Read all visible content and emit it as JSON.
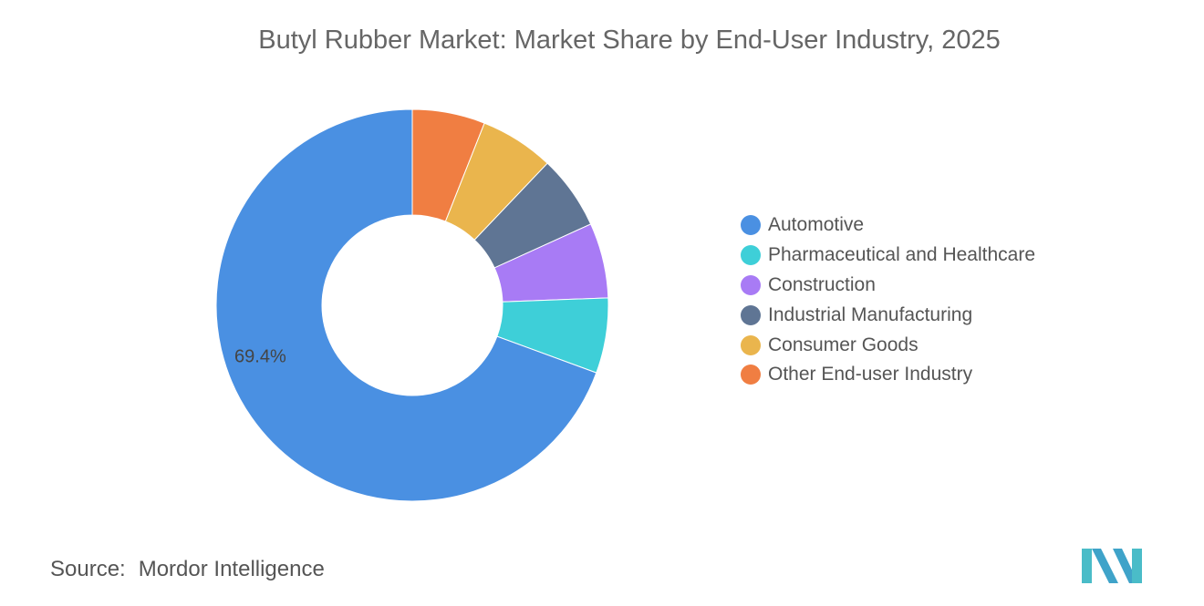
{
  "chart_data": {
    "type": "pie",
    "donut": true,
    "title": "Butyl Rubber Market: Market Share by End-User Industry, 2025",
    "series": [
      {
        "name": "Automotive",
        "value": 69.4,
        "color": "#4A90E2"
      },
      {
        "name": "Pharmaceutical and Healthcare",
        "value": 6.2,
        "color": "#3ECFD8"
      },
      {
        "name": "Construction",
        "value": 6.2,
        "color": "#A87BF5"
      },
      {
        "name": "Industrial Manufacturing",
        "value": 6.1,
        "color": "#5F7594"
      },
      {
        "name": "Consumer Goods",
        "value": 6.1,
        "color": "#EAB54D"
      },
      {
        "name": "Other End-user Industry",
        "value": 6.0,
        "color": "#F07E42"
      }
    ],
    "data_labels": [
      {
        "series": "Automotive",
        "text": "69.4%"
      }
    ],
    "legend_position": "right"
  },
  "source": {
    "label": "Source:",
    "name": "Mordor Intelligence"
  },
  "logo": {
    "icon": "mordor-intelligence-logo-icon",
    "color": "#4ABCC8"
  }
}
